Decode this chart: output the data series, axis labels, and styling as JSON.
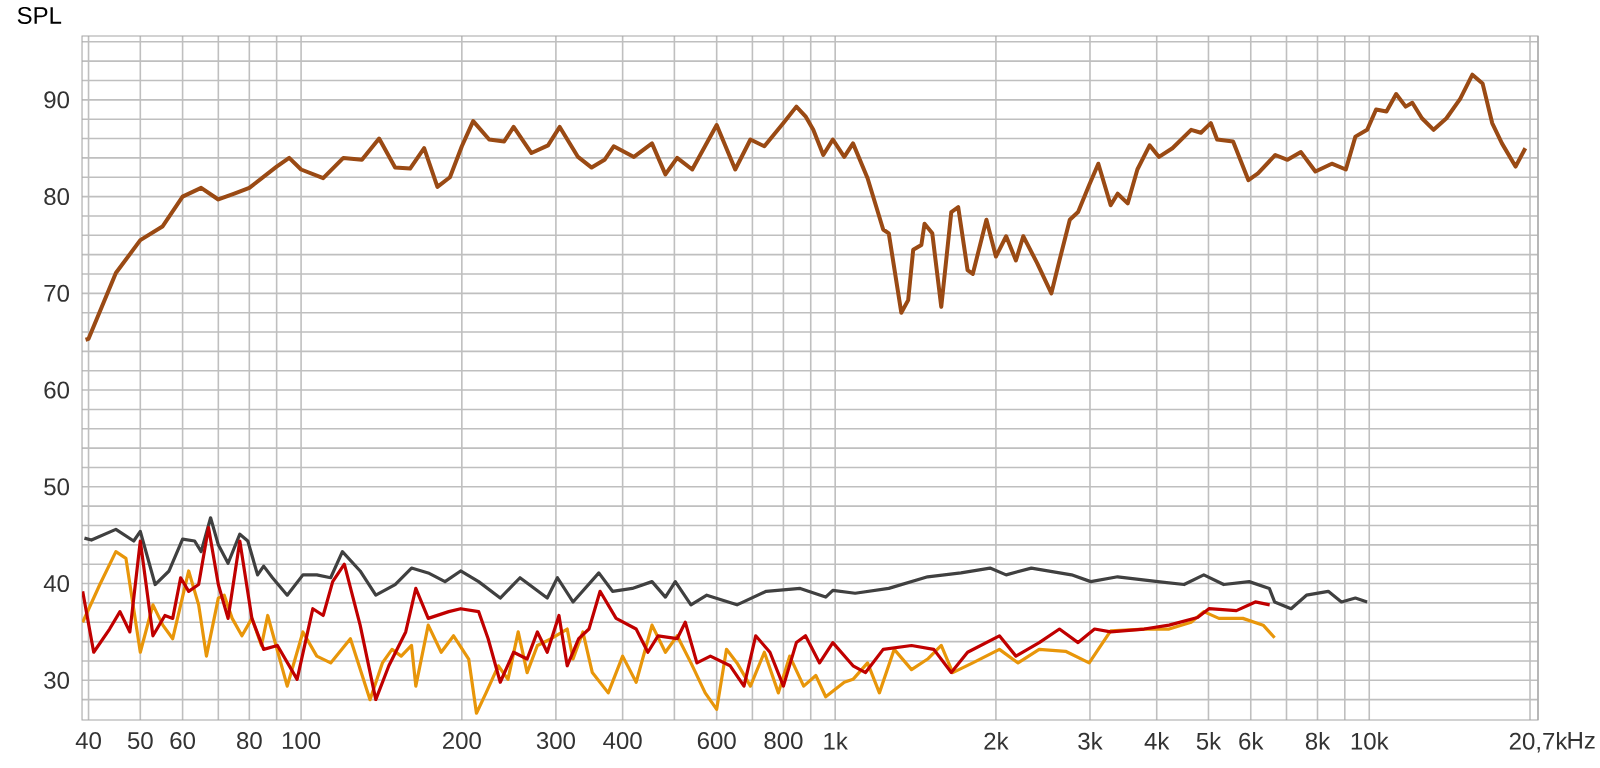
{
  "chart_data": {
    "type": "line",
    "ylabel": "SPL",
    "log": "x",
    "grid": true,
    "xlim": [
      38.9,
      20700
    ],
    "ylim": [
      25.9,
      96.6
    ],
    "xticks": [
      40,
      50,
      60,
      {
        "value": 70,
        "label": null
      },
      80,
      {
        "value": 90,
        "label": null
      },
      100,
      200,
      300,
      400,
      {
        "value": 500,
        "label": null
      },
      600,
      {
        "value": 700,
        "label": null
      },
      800,
      {
        "value": 900,
        "label": null
      },
      {
        "value": 1000,
        "label": "1k"
      },
      {
        "value": 2000,
        "label": "2k"
      },
      {
        "value": 3000,
        "label": "3k"
      },
      {
        "value": 4000,
        "label": "4k"
      },
      {
        "value": 5000,
        "label": "5k"
      },
      {
        "value": 6000,
        "label": "6k"
      },
      {
        "value": 7000,
        "label": null
      },
      {
        "value": 8000,
        "label": "8k"
      },
      {
        "value": 9000,
        "label": null
      },
      {
        "value": 10000,
        "label": "10k"
      },
      {
        "value": 20000,
        "label": null
      },
      {
        "value": 20700,
        "label": "20,7k"
      }
    ],
    "xlabel": "Hz",
    "yticks": [
      {
        "value": 28,
        "label": null
      },
      30,
      {
        "value": 32,
        "label": null
      },
      {
        "value": 34,
        "label": null
      },
      {
        "value": 36,
        "label": null
      },
      {
        "value": 38,
        "label": null
      },
      40,
      {
        "value": 42,
        "label": null
      },
      {
        "value": 44,
        "label": null
      },
      {
        "value": 46,
        "label": null
      },
      {
        "value": 48,
        "label": null
      },
      50,
      {
        "value": 52,
        "label": null
      },
      {
        "value": 54,
        "label": null
      },
      {
        "value": 56,
        "label": null
      },
      {
        "value": 58,
        "label": null
      },
      60,
      {
        "value": 62,
        "label": null
      },
      {
        "value": 64,
        "label": null
      },
      {
        "value": 66,
        "label": null
      },
      {
        "value": 68,
        "label": null
      },
      70,
      {
        "value": 72,
        "label": null
      },
      {
        "value": 74,
        "label": null
      },
      {
        "value": 76,
        "label": null
      },
      {
        "value": 78,
        "label": null
      },
      80,
      {
        "value": 82,
        "label": null
      },
      {
        "value": 84,
        "label": null
      },
      {
        "value": 86,
        "label": null
      },
      {
        "value": 88,
        "label": null
      },
      90,
      {
        "value": 92,
        "label": null
      },
      {
        "value": 94,
        "label": null
      },
      {
        "value": 96,
        "label": null
      }
    ],
    "series": [
      {
        "color": "#404040",
        "x": [
          39.3,
          40.5,
          45,
          48.6,
          50,
          53.3,
          56.6,
          60,
          63.2,
          65,
          67.7,
          70,
          73,
          76.8,
          79.5,
          82.9,
          85.1,
          88.4,
          94.2,
          100.8,
          107,
          113.6,
          119.5,
          129,
          138,
          150,
          161,
          173,
          186,
          199,
          215,
          236,
          257,
          289,
          302,
          323,
          361,
          383,
          417,
          454,
          481,
          502,
          537,
          575,
          655,
          743,
          860,
          960,
          990,
          1090,
          1260,
          1490,
          1720,
          1950,
          2090,
          2330,
          2770,
          3010,
          3380,
          4020,
          4500,
          4900,
          5340,
          5960,
          6500,
          6650,
          7140,
          7630,
          8380,
          8870,
          9420,
          9910
        ],
        "values": [
          44.7,
          44.5,
          45.6,
          44.4,
          45.4,
          39.9,
          41.3,
          44.6,
          44.4,
          43.3,
          46.8,
          44,
          42.1,
          45.1,
          44.4,
          40.9,
          41.8,
          40.6,
          38.8,
          40.9,
          40.9,
          40.6,
          43.3,
          41.3,
          38.8,
          39.9,
          41.6,
          41.1,
          40.2,
          41.3,
          40.2,
          38.5,
          40.6,
          38.5,
          40.6,
          38.1,
          41.1,
          39.2,
          39.5,
          40.2,
          38.6,
          40.2,
          37.8,
          38.8,
          37.8,
          39.2,
          39.5,
          38.6,
          39.3,
          39,
          39.5,
          40.7,
          41.1,
          41.6,
          40.9,
          41.6,
          40.9,
          40.2,
          40.7,
          40.2,
          39.9,
          40.9,
          39.9,
          40.2,
          39.5,
          38.1,
          37.4,
          38.8,
          39.2,
          38.1,
          38.5,
          38.1
        ]
      },
      {
        "color": "#e8960a",
        "x": [
          39,
          42,
          45,
          47,
          50,
          52.8,
          55.1,
          57.5,
          61.6,
          64.3,
          66.5,
          70,
          71.8,
          74.3,
          77.5,
          80.9,
          84.3,
          86.6,
          94.2,
          100.8,
          107,
          113.6,
          123.7,
          134.6,
          142,
          148,
          154,
          161,
          164,
          173,
          183,
          193,
          206,
          213,
          222,
          234,
          244,
          255,
          265,
          277,
          294,
          315,
          323,
          337,
          351,
          376,
          400,
          424,
          454,
          481,
          506,
          537,
          571,
          600,
          626,
          655,
          694,
          737,
          783,
          822,
          873,
          920,
          960,
          1040,
          1080,
          1150,
          1210,
          1290,
          1390,
          1490,
          1580,
          1660,
          1810,
          2030,
          2200,
          2410,
          2700,
          2990,
          3280,
          3790,
          4220,
          4640,
          4900,
          5230,
          5800,
          6330,
          6650
        ],
        "values": [
          36,
          39.9,
          43.3,
          42.6,
          32.9,
          37.8,
          35.7,
          34.3,
          41.3,
          37.8,
          32.5,
          38.5,
          38.8,
          36.4,
          34.6,
          36.4,
          33.6,
          36.7,
          29.4,
          35,
          32.5,
          31.8,
          34.3,
          28,
          31.8,
          33.2,
          32.5,
          33.6,
          29.4,
          35.7,
          32.9,
          34.6,
          32.2,
          26.6,
          28.7,
          31.5,
          30.1,
          35,
          30.8,
          33.6,
          34.3,
          35.3,
          32.2,
          35,
          30.8,
          28.7,
          32.5,
          29.8,
          35.7,
          32.9,
          34.6,
          31.8,
          28.7,
          27,
          33.2,
          31.8,
          29.4,
          32.9,
          28.7,
          32.5,
          29.4,
          30.5,
          28.3,
          29.8,
          30.1,
          31.8,
          28.7,
          33.2,
          31.1,
          32.2,
          33.6,
          30.8,
          31.8,
          33.2,
          31.8,
          33.2,
          33,
          31.8,
          35.1,
          35.3,
          35.3,
          36,
          37.1,
          36.4,
          36.4,
          35.7,
          34.4
        ]
      },
      {
        "color": "#c00000",
        "x": [
          39,
          40.9,
          43.8,
          45.8,
          47.8,
          50,
          52.8,
          55.6,
          57.5,
          59.5,
          61.6,
          64.3,
          67.1,
          70,
          73,
          76.8,
          80.9,
          85.1,
          90.3,
          98.3,
          105.2,
          110,
          114.6,
          120.5,
          129,
          138,
          146,
          157,
          164,
          173,
          189,
          199,
          215,
          224,
          236,
          250,
          265,
          277,
          289,
          304,
          315,
          331,
          346,
          363,
          389,
          424,
          446,
          466,
          506,
          524,
          551,
          584,
          636,
          675,
          710,
          755,
          800,
          846,
          880,
          935,
          990,
          1080,
          1140,
          1230,
          1390,
          1530,
          1650,
          1770,
          2030,
          2180,
          2410,
          2630,
          2850,
          3060,
          3280,
          3790,
          4220,
          4770,
          5010,
          5640,
          6120,
          6510
        ],
        "values": [
          39.2,
          32.9,
          35.3,
          37.1,
          35,
          44.4,
          34.6,
          36.7,
          36.4,
          40.6,
          39.2,
          39.9,
          45.8,
          39.9,
          36.4,
          44.4,
          36.4,
          33.2,
          33.6,
          30.1,
          37.4,
          36.7,
          40.2,
          42,
          35.7,
          28,
          31.5,
          35,
          39.5,
          36.4,
          37.1,
          37.4,
          37.1,
          34.3,
          29.8,
          32.9,
          32.2,
          35,
          32.9,
          36.7,
          31.5,
          34.3,
          35.3,
          39.2,
          36.4,
          35.3,
          32.9,
          34.6,
          34.3,
          36,
          31.8,
          32.5,
          31.5,
          29.4,
          34.6,
          32.9,
          29.4,
          33.9,
          34.6,
          31.8,
          33.9,
          31.5,
          30.8,
          33.2,
          33.6,
          33.2,
          30.8,
          32.9,
          34.6,
          32.5,
          33.9,
          35.3,
          33.9,
          35.3,
          35,
          35.3,
          35.7,
          36.5,
          37.4,
          37.2,
          38.1,
          37.8
        ]
      },
      {
        "color": "#9a4a14",
        "x": [
          39.5,
          40,
          45,
          50,
          55,
          60,
          65,
          70,
          75,
          80,
          90,
          95,
          100,
          110,
          120,
          130,
          140,
          150,
          160,
          170,
          180,
          190,
          200,
          210,
          225,
          240,
          250,
          270,
          290,
          305,
          330,
          350,
          370,
          385,
          420,
          454,
          481,
          506,
          540,
          600,
          650,
          694,
          737,
          800,
          846,
          880,
          910,
          950,
          990,
          1040,
          1080,
          1150,
          1230,
          1260,
          1330,
          1370,
          1400,
          1450,
          1470,
          1520,
          1580,
          1650,
          1700,
          1770,
          1810,
          1920,
          2000,
          2090,
          2180,
          2250,
          2390,
          2540,
          2630,
          2750,
          2850,
          2990,
          3110,
          3280,
          3380,
          3530,
          3680,
          3880,
          4040,
          4280,
          4640,
          4840,
          5050,
          5190,
          5560,
          5940,
          6190,
          6670,
          7030,
          7450,
          7930,
          8510,
          9040,
          9420,
          9910,
          10300,
          10770,
          11230,
          11700,
          12040,
          12550,
          13200,
          13950,
          14800,
          15600,
          16300,
          16990,
          17720,
          18790,
          19600
        ],
        "values": [
          65.2,
          65.3,
          72.1,
          75.5,
          76.9,
          80,
          80.9,
          79.7,
          80.3,
          80.9,
          83.1,
          84,
          82.8,
          81.9,
          84,
          83.8,
          86,
          83,
          82.9,
          85,
          81,
          82,
          85.2,
          87.8,
          85.9,
          85.7,
          87.2,
          84.5,
          85.3,
          87.2,
          84.1,
          83,
          83.8,
          85.2,
          84.1,
          85.5,
          82.3,
          84,
          82.8,
          87.4,
          82.8,
          85.9,
          85.2,
          87.6,
          89.3,
          88.3,
          86.9,
          84.3,
          85.9,
          84.1,
          85.5,
          81.9,
          76.6,
          76.2,
          68,
          69.3,
          74.5,
          75,
          77.2,
          76.2,
          68.6,
          78.4,
          78.9,
          72.4,
          72,
          77.6,
          73.8,
          75.9,
          73.4,
          75.9,
          73.1,
          70,
          73.4,
          77.6,
          78.4,
          81.2,
          83.4,
          79.1,
          80.3,
          79.3,
          82.8,
          85.3,
          84.1,
          85,
          86.9,
          86.6,
          87.6,
          85.9,
          85.7,
          81.7,
          82.4,
          84.3,
          83.8,
          84.6,
          82.6,
          83.4,
          82.8,
          86.2,
          86.9,
          89,
          88.8,
          90.6,
          89.3,
          89.7,
          88.1,
          86.9,
          88.1,
          90.1,
          92.6,
          91.7,
          87.6,
          85.5,
          83.1,
          85
        ]
      }
    ]
  }
}
